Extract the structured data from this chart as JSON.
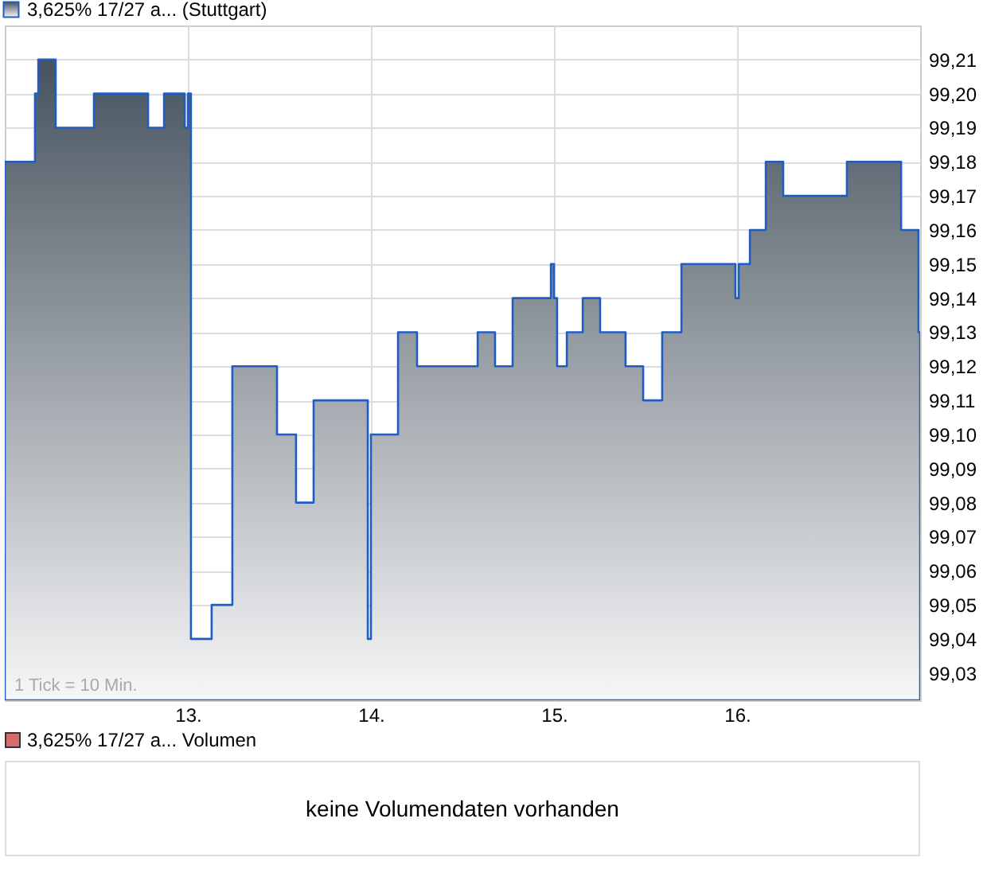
{
  "chart_data": {
    "type": "area",
    "legend": "top left",
    "grid": true,
    "x": [
      12.0,
      12.165,
      12.183,
      12.278,
      12.487,
      12.783,
      12.87,
      12.983,
      13.0,
      13.017,
      13.13,
      13.243,
      13.487,
      13.591,
      13.687,
      13.983,
      14.0,
      14.148,
      14.252,
      14.583,
      14.678,
      14.774,
      14.983,
      15.0,
      15.017,
      15.07,
      15.157,
      15.252,
      15.391,
      15.487,
      15.591,
      15.696,
      15.991,
      16.009,
      16.07,
      16.157,
      16.252,
      16.6,
      16.896,
      16.991,
      17.0
    ],
    "series": [
      {
        "name": "3,625% 17/27 a... (Stuttgart)",
        "color": "#1f5cc4",
        "values": [
          99.18,
          99.2,
          99.21,
          99.19,
          99.2,
          99.19,
          99.2,
          99.19,
          99.2,
          99.04,
          99.05,
          99.12,
          99.1,
          99.08,
          99.11,
          99.04,
          99.1,
          99.13,
          99.12,
          99.13,
          99.12,
          99.14,
          99.15,
          99.14,
          99.12,
          99.13,
          99.14,
          99.13,
          99.12,
          99.11,
          99.13,
          99.15,
          99.14,
          99.15,
          99.16,
          99.18,
          99.17,
          99.18,
          99.16,
          99.13,
          99.13
        ]
      }
    ],
    "xlim": [
      12,
      17
    ],
    "xticks": [
      {
        "value": 13,
        "label": "13."
      },
      {
        "value": 14,
        "label": "14."
      },
      {
        "value": 15,
        "label": "15."
      },
      {
        "value": 16,
        "label": "16."
      }
    ],
    "ylim": [
      99.022,
      99.22
    ],
    "yticks": [
      {
        "value": 99.03,
        "label": "99,03"
      },
      {
        "value": 99.04,
        "label": "99,04"
      },
      {
        "value": 99.05,
        "label": "99,05"
      },
      {
        "value": 99.06,
        "label": "99,06"
      },
      {
        "value": 99.07,
        "label": "99,07"
      },
      {
        "value": 99.08,
        "label": "99,08"
      },
      {
        "value": 99.09,
        "label": "99,09"
      },
      {
        "value": 99.1,
        "label": "99,10"
      },
      {
        "value": 99.11,
        "label": "99,11"
      },
      {
        "value": 99.12,
        "label": "99,12"
      },
      {
        "value": 99.13,
        "label": "99,13"
      },
      {
        "value": 99.14,
        "label": "99,14"
      },
      {
        "value": 99.15,
        "label": "99,15"
      },
      {
        "value": 99.16,
        "label": "99,16"
      },
      {
        "value": 99.17,
        "label": "99,17"
      },
      {
        "value": 99.18,
        "label": "99,18"
      },
      {
        "value": 99.19,
        "label": "99,19"
      },
      {
        "value": 99.2,
        "label": "99,20"
      },
      {
        "value": 99.21,
        "label": "99,21"
      }
    ],
    "annotations": [
      "1 Tick = 10 Min.",
      "3,625% 17/27 a... Volumen",
      "keine Volumendaten vorhanden"
    ]
  }
}
